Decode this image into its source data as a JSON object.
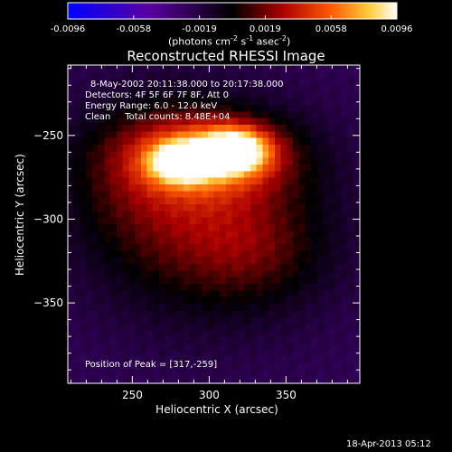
{
  "colorbar": {
    "ticks": [
      "-0.0096",
      "-0.0058",
      "-0.0019",
      "0.0019",
      "0.0058",
      "0.0096"
    ],
    "units_prefix": "(photons cm",
    "units_exp1": "-2",
    "units_mid": " s",
    "units_exp2": "-1",
    "units_mid2": " asec",
    "units_exp3": "-2",
    "units_suffix": ")"
  },
  "info": {
    "line1": "8-May-2002 20:11:38.000 to 20:17:38.000",
    "line2": "Detectors: 4F 5F 6F 7F 8F, Att 0",
    "line3": "Energy Range: 6.0 - 12.0 keV",
    "line4": "Clean     Total counts: 8.48E+04",
    "peak": "Position of Peak = [317,-259]"
  },
  "footer": {
    "timestamp": "18-Apr-2013 05:12"
  },
  "chart_data": {
    "type": "heatmap",
    "title": "Reconstructed RHESSI Image",
    "xlabel": "Heliocentric X (arcsec)",
    "ylabel": "Heliocentric Y (arcsec)",
    "xlim": [
      208,
      398
    ],
    "ylim": [
      -398,
      -208
    ],
    "xticks": [
      250,
      300,
      350
    ],
    "yticks": [
      -250,
      -300,
      -350
    ],
    "colorbar_range": [
      -0.0096,
      0.0096
    ],
    "colormap": [
      "#0000ff",
      "#5a00a0",
      "#000000",
      "#aa0000",
      "#ff5a00",
      "#ffd040",
      "#ffffff"
    ],
    "peak": [
      317,
      -259
    ],
    "sources": [
      {
        "x": 317,
        "y": -259,
        "sx": 15,
        "sy": 9,
        "amp": 0.0092
      },
      {
        "x": 282,
        "y": -266,
        "sx": 14,
        "sy": 8,
        "amp": 0.0082
      },
      {
        "x": 300,
        "y": -262,
        "sx": 36,
        "sy": 16,
        "amp": 0.006
      },
      {
        "x": 300,
        "y": -300,
        "sx": 55,
        "sy": 42,
        "amp": 0.004
      },
      {
        "x": 262,
        "y": -270,
        "sx": 40,
        "sy": 32,
        "amp": 0.0022
      },
      {
        "x": 330,
        "y": -320,
        "sx": 30,
        "sy": 20,
        "amp": 0.0015
      }
    ],
    "background": -0.0025
  }
}
